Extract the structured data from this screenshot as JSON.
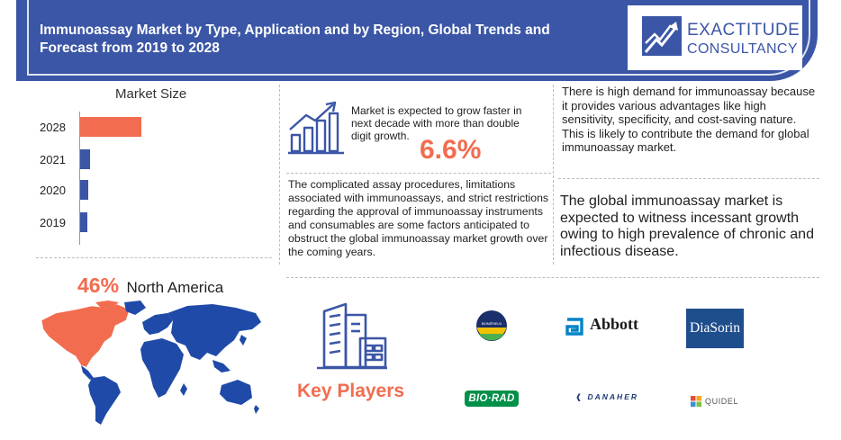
{
  "header": {
    "title": "Immunoassay Market by Type, Application and by Region, Global Trends and Forecast from 2019 to 2028"
  },
  "brand_logo": {
    "line1": "EXACTITUDE",
    "line2": "CONSULTANCY"
  },
  "chart_data": {
    "type": "bar",
    "orientation": "horizontal",
    "title": "Market Size",
    "categories": [
      "2028",
      "2021",
      "2020",
      "2019"
    ],
    "values": [
      6.4,
      1.0,
      0.85,
      0.75
    ],
    "xlim": [
      0,
      6.4
    ],
    "grid": false,
    "legend": "none",
    "colors": [
      "#f26c4f",
      "#3b56a6",
      "#3b56a6",
      "#3b56a6"
    ]
  },
  "growth": {
    "text": "Market is expected to grow faster in next decade with more than double digit growth.",
    "cagr": "6.6%"
  },
  "demand_text": "There is high demand for immunoassay because it provides various advantages like high sensitivity, specificity, and cost-saving nature. This is likely to contribute the demand for global immunoassay market.",
  "restraint_text": "The complicated assay procedures, limitations associated with immunoassays, and strict restrictions regarding the approval of immunoassay instruments and consumables are some factors anticipated to obstruct the global immunoassay market growth over the coming years.",
  "prevalence_text": "The global immunoassay market is expected to witness incessant growth owing to high prevalence of chronic and infectious disease.",
  "region": {
    "share": "46%",
    "name": "North America"
  },
  "key_players": {
    "label": "Key Players",
    "logos": {
      "biomerieux": "BIOMÉRIEUX",
      "abbott": "Abbott",
      "diasorin": "DiaSorin",
      "biorad": "BIO·RAD",
      "danaher": "DANAHER",
      "quidel": "QUIDEL"
    }
  },
  "colors": {
    "brand_blue": "#3b56a6",
    "accent_orange": "#f26c4f"
  },
  "icons": [
    "growth-chart-icon",
    "building-icon",
    "world-map-icon"
  ]
}
